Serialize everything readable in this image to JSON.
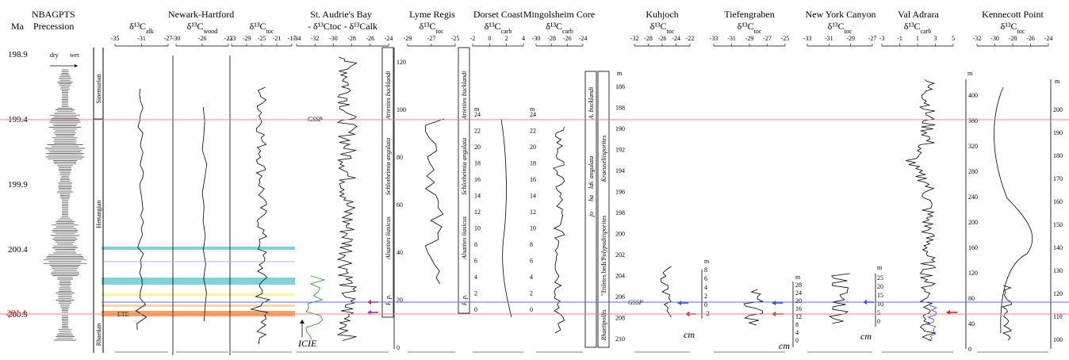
{
  "chart_data": {
    "type": "line",
    "ma_label": "Ma",
    "ma_ticks": [
      "198.9",
      "199.4",
      "199.9",
      "200.4",
      "200.9"
    ],
    "ma_highlight": "201.4",
    "highlight_color": "#e02020",
    "precession": {
      "title1": "NBAGPTS",
      "title2": "Precession",
      "dry": "dry",
      "wet": "wet"
    },
    "stages": [
      "Sinemurian",
      "Hettangian",
      "Rhaetian"
    ],
    "ete_label": "ETE",
    "gssp_label": "GSSP",
    "icie_label": "ICIE",
    "cm_label": "cm",
    "m_label": "m",
    "red_line_color": "#f08080",
    "blue_line_color": "#6666ee",
    "cyan_band_color": "#7fd3d8",
    "orange_band_color": "#f4a460",
    "yellow_band_color": "#fff59d",
    "newark_title": "Newark-Hartford",
    "sections": [
      {
        "title": "",
        "sub": "δ¹³C",
        "subscript": "alk",
        "ticks": [
          "-35",
          "-31",
          "-27"
        ]
      },
      {
        "title": "",
        "sub": "δ¹³C",
        "subscript": "wood",
        "ticks": [
          "-30",
          "-26",
          "-22"
        ]
      },
      {
        "title": "",
        "sub": "δ¹³C",
        "subscript": "toc",
        "ticks": [
          "-33",
          "-29",
          "-25",
          "-21",
          "-17"
        ]
      },
      {
        "title": "St. Audrie's Bay",
        "sub": "- δ¹³Ctoc - δ¹³Calk",
        "subscript": "",
        "ticks": [
          "-34",
          "-32",
          "-30",
          "-28",
          "-26",
          "-24"
        ]
      },
      {
        "title": "Lyme Regis",
        "sub": "δ¹³C",
        "subscript": "toc",
        "ticks": [
          "-29",
          "-27",
          "-25"
        ]
      },
      {
        "title": "Dorset Coast",
        "sub": "δ¹³C",
        "subscript": "carb",
        "ticks": [
          "-2",
          "0",
          "2",
          "4"
        ]
      },
      {
        "title": "Mingolsheim Core",
        "sub": "δ¹³C",
        "subscript": "carb",
        "ticks": [
          "-30",
          "-28",
          "-26",
          "-24"
        ]
      },
      {
        "title": "Kuhjoch",
        "sub": "δ¹³C",
        "subscript": "toc",
        "ticks": [
          "-32",
          "-28",
          "-26",
          "-24",
          "-22"
        ]
      },
      {
        "title": "Tiefengraben",
        "sub": "δ¹³C",
        "subscript": "toc",
        "ticks": [
          "-33",
          "-31",
          "-29",
          "-27",
          "-25"
        ]
      },
      {
        "title": "New York Canyon",
        "sub": "δ¹³C",
        "subscript": "toc",
        "ticks": [
          "-33",
          "-31",
          "-29",
          "-27"
        ]
      },
      {
        "title": "Val Adrara",
        "sub": "δ¹³C",
        "subscript": "carb",
        "ticks": [
          "-3",
          "-1",
          "1",
          "3",
          "5"
        ]
      },
      {
        "title": "Kennecott Point",
        "sub": "δ¹³C",
        "subscript": "toc",
        "ticks": [
          "-32",
          "-30",
          "-28",
          "-26",
          "-24"
        ]
      }
    ],
    "zones_bucklandi": "Arietites bucklandi",
    "zones_angulata": "Schlotheimia angulata",
    "zones_liasicus": "Alsatites liasicus",
    "zones_pp": "P. p.",
    "zones_short": [
      "A. bucklandi",
      "S. angulata",
      "jo",
      "ha",
      "la"
    ],
    "palyno": [
      "Kraeuseliisporites",
      "\"Triletes beds\"",
      "Polypodiisporites",
      "Rhaetipollis"
    ],
    "sab_scale": [
      "0",
      "20",
      "40",
      "60",
      "80",
      "100",
      "120"
    ],
    "dorset_scale": [
      "0",
      "2",
      "4",
      "6",
      "8",
      "10",
      "12",
      "14",
      "16",
      "18",
      "20",
      "22",
      "24"
    ],
    "ming_scale": [
      "186",
      "188",
      "190",
      "192",
      "194",
      "196",
      "198",
      "200",
      "202",
      "204",
      "206",
      "208",
      "210"
    ],
    "kuhjoch_scale": [
      "-2",
      "0",
      "2",
      "4",
      "6",
      "8"
    ],
    "tief_scale": [
      "0",
      "4",
      "8",
      "12",
      "16",
      "20",
      "24",
      "28"
    ],
    "nyc_scale": [
      "0",
      "5",
      "10",
      "15",
      "20",
      "25"
    ],
    "val_scale": [
      "0",
      "40",
      "80",
      "120",
      "160",
      "200",
      "240",
      "280",
      "320",
      "360",
      "400"
    ],
    "kenn_scale": [
      "100",
      "110",
      "120",
      "130",
      "140",
      "150",
      "160",
      "170",
      "180",
      "190",
      "200"
    ]
  }
}
